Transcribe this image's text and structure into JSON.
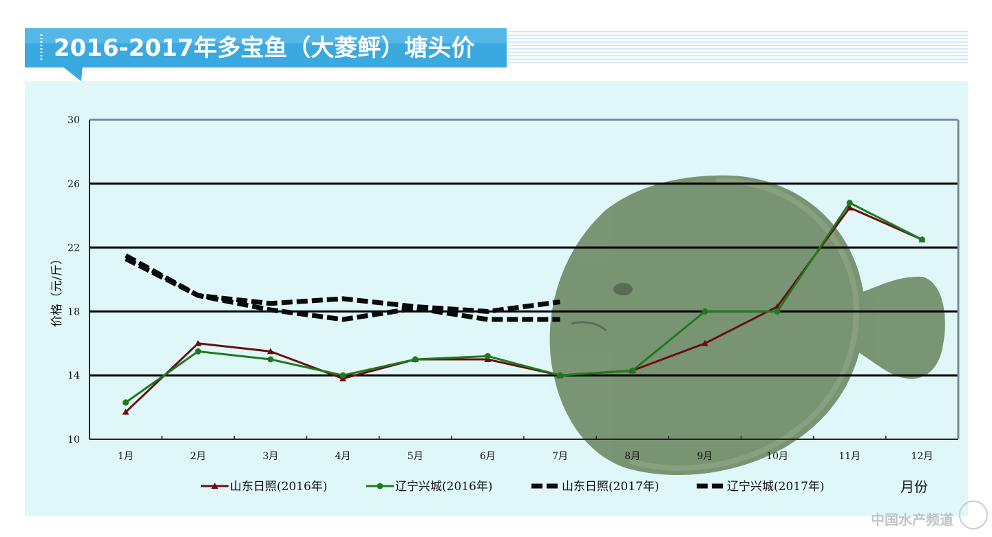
{
  "title": "2016-2017年多宝鱼（大菱鲆）塘头价",
  "watermark": "中国水产频道",
  "colors": {
    "banner": "#3aa9e0",
    "panel_bg": "#dff7f9",
    "grid": "#000000",
    "series_2016_shandong": "#6b0f0f",
    "series_2016_liaoning": "#1e7a1e",
    "series_2017": "#0a0a0a",
    "fish_body": "#6f8a64"
  },
  "chart_data": {
    "type": "line",
    "title": "2016-2017年多宝鱼（大菱鲆）塘头价",
    "ylabel": "价格（元/斤）",
    "xlabel": "月份",
    "ylim": [
      10,
      30
    ],
    "yticks": [
      "10",
      "14",
      "18",
      "22",
      "26",
      "30"
    ],
    "categories": [
      "1月",
      "2月",
      "3月",
      "4月",
      "5月",
      "6月",
      "7月",
      "8月",
      "9月",
      "10月",
      "11月",
      "12月"
    ],
    "grid": "horizontal",
    "legend_position": "bottom",
    "series": [
      {
        "name": "山东日照(2016年)",
        "style": "solid-triangle",
        "values": [
          11.7,
          16.0,
          15.5,
          13.8,
          15.0,
          15.0,
          14.0,
          14.3,
          16.0,
          18.3,
          24.5,
          22.5
        ]
      },
      {
        "name": "辽宁兴城(2016年)",
        "style": "solid-circle",
        "values": [
          12.3,
          15.5,
          15.0,
          14.0,
          15.0,
          15.2,
          14.0,
          14.3,
          18.0,
          18.0,
          24.8,
          22.5
        ]
      },
      {
        "name": "山东日照(2017年)",
        "style": "dashed-bold",
        "values": [
          21.3,
          19.0,
          18.1,
          17.5,
          18.2,
          17.5,
          17.5,
          null,
          null,
          null,
          null,
          null
        ]
      },
      {
        "name": "辽宁兴城(2017年)",
        "style": "dashed-bold",
        "values": [
          21.5,
          19.0,
          18.5,
          18.8,
          18.3,
          18.0,
          18.6,
          null,
          null,
          null,
          null,
          null
        ]
      }
    ]
  }
}
